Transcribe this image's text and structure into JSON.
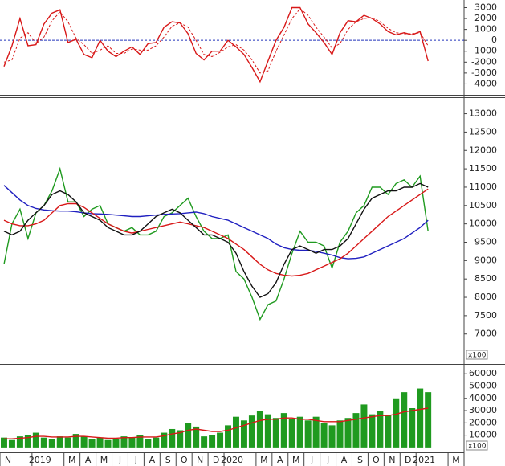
{
  "chart_data": [
    {
      "type": "line",
      "ylim": [
        -5000,
        3700
      ],
      "yticks": [
        3000,
        2000,
        1000,
        0,
        -1000,
        -2000,
        -3000,
        -4000
      ],
      "zero_line": true,
      "zero_line_color": "#2233bb",
      "series": [
        {
          "color": "#d81818",
          "values": [
            -2400,
            -500,
            2000,
            -500,
            -400,
            1500,
            2500,
            2800,
            -200,
            100,
            -1300,
            -1600,
            0,
            -1000,
            -1500,
            -1000,
            -600,
            -1300,
            -300,
            -200,
            1200,
            1700,
            1600,
            600,
            -1200,
            -1800,
            -1000,
            -1000,
            0,
            -600,
            -1300,
            -2500,
            -3800,
            -1900,
            0,
            1200,
            3000,
            3000,
            1500,
            700,
            -200,
            -1300,
            700,
            1800,
            1700,
            2300,
            2000,
            1500,
            800,
            500,
            700,
            500,
            800,
            -1900,
            null,
            null,
            null,
            null
          ]
        },
        {
          "color": "#d81818",
          "dash": true,
          "values": [
            -2000,
            -1800,
            200,
            700,
            -300,
            300,
            1800,
            2600,
            1700,
            200,
            -400,
            -1200,
            -900,
            -500,
            -1200,
            -1200,
            -800,
            -900,
            -900,
            -500,
            300,
            1300,
            1600,
            1200,
            0,
            -1300,
            -1500,
            -1100,
            -600,
            -400,
            -900,
            -1800,
            -3000,
            -2800,
            -1000,
            500,
            2000,
            2900,
            2300,
            1200,
            300,
            -700,
            -300,
            1000,
            1700,
            2000,
            2100,
            1700,
            1100,
            700,
            600,
            600,
            700,
            -500,
            null,
            null,
            null,
            null
          ]
        }
      ]
    },
    {
      "type": "line",
      "ylim": [
        6250,
        13450
      ],
      "yticks": [
        13000,
        12500,
        12000,
        11500,
        11000,
        10500,
        10000,
        9500,
        9000,
        8500,
        8000,
        7500,
        7000
      ],
      "unit_label": "x100",
      "series": [
        {
          "color": "#1f9a1f",
          "values": [
            8900,
            10000,
            10400,
            9600,
            10300,
            10500,
            10900,
            11500,
            10600,
            10600,
            10200,
            10400,
            10500,
            10000,
            9900,
            9800,
            9900,
            9700,
            9700,
            9800,
            10200,
            10300,
            10500,
            10700,
            10200,
            9800,
            9600,
            9600,
            9700,
            8700,
            8500,
            8000,
            7400,
            7800,
            7900,
            8500,
            9200,
            9800,
            9500,
            9500,
            9400,
            8800,
            9500,
            9800,
            10300,
            10500,
            11000,
            11000,
            10800,
            11100,
            11200,
            11000,
            11300,
            9800,
            null,
            null,
            null,
            null
          ]
        },
        {
          "color": "#2020c0",
          "values": [
            11050,
            10850,
            10650,
            10500,
            10420,
            10380,
            10360,
            10350,
            10350,
            10330,
            10300,
            10280,
            10270,
            10260,
            10240,
            10220,
            10200,
            10200,
            10220,
            10240,
            10260,
            10270,
            10280,
            10300,
            10320,
            10280,
            10200,
            10150,
            10100,
            10000,
            9900,
            9800,
            9700,
            9600,
            9450,
            9350,
            9300,
            9280,
            9280,
            9250,
            9200,
            9150,
            9080,
            9050,
            9060,
            9100,
            9200,
            9300,
            9400,
            9500,
            9600,
            9750,
            9900,
            10100,
            null,
            null,
            null,
            null
          ]
        },
        {
          "color": "#d81818",
          "values": [
            10100,
            10000,
            9950,
            9950,
            10000,
            10100,
            10300,
            10500,
            10550,
            10550,
            10450,
            10300,
            10150,
            10000,
            9900,
            9800,
            9750,
            9800,
            9850,
            9900,
            9950,
            10000,
            10050,
            10000,
            9950,
            9900,
            9800,
            9700,
            9600,
            9450,
            9300,
            9100,
            8900,
            8750,
            8650,
            8600,
            8580,
            8600,
            8650,
            8750,
            8850,
            8950,
            9050,
            9200,
            9400,
            9600,
            9800,
            10000,
            10200,
            10350,
            10500,
            10650,
            10800,
            10950,
            null,
            null,
            null,
            null
          ]
        },
        {
          "color": "#111111",
          "values": [
            9800,
            9700,
            9800,
            10100,
            10300,
            10500,
            10800,
            10900,
            10800,
            10600,
            10300,
            10200,
            10100,
            9900,
            9800,
            9700,
            9700,
            9800,
            10000,
            10200,
            10300,
            10400,
            10300,
            10100,
            9900,
            9700,
            9700,
            9600,
            9500,
            9200,
            8700,
            8300,
            8000,
            8100,
            8400,
            8900,
            9300,
            9400,
            9300,
            9200,
            9300,
            9300,
            9400,
            9600,
            10000,
            10400,
            10700,
            10800,
            10900,
            10900,
            11000,
            11000,
            11100,
            11000,
            null,
            null,
            null,
            null
          ]
        }
      ]
    },
    {
      "type": "bar",
      "ylim": [
        -4000,
        68000
      ],
      "yticks": [
        60000,
        50000,
        40000,
        30000,
        20000,
        10000
      ],
      "unit_label": "x100",
      "categories": [
        "N",
        null,
        null,
        null,
        "2019",
        null,
        null,
        null,
        "M",
        null,
        "A",
        null,
        "M",
        null,
        "J",
        null,
        "J",
        null,
        "A",
        null,
        "S",
        null,
        "O",
        null,
        "N",
        null,
        "D",
        null,
        "2020",
        null,
        null,
        null,
        "M",
        null,
        "A",
        null,
        "M",
        null,
        "J",
        null,
        "J",
        null,
        "A",
        null,
        "S",
        null,
        "O",
        null,
        "N",
        null,
        "D",
        null,
        "2021",
        null,
        null,
        null,
        "M",
        null
      ],
      "series": [
        {
          "color": "#1f9a1f",
          "values": [
            8000,
            6000,
            9000,
            10000,
            12000,
            8000,
            7000,
            9000,
            8000,
            11000,
            9000,
            7000,
            8000,
            6000,
            7000,
            9000,
            8000,
            10000,
            7000,
            8000,
            12000,
            15000,
            14000,
            20000,
            17000,
            9000,
            10000,
            12000,
            18000,
            25000,
            22000,
            26000,
            30000,
            27000,
            24000,
            28000,
            23000,
            25000,
            22000,
            25000,
            20000,
            18000,
            22000,
            24000,
            28000,
            35000,
            27000,
            30000,
            26000,
            40000,
            45000,
            32000,
            48000,
            45000,
            null,
            null,
            null,
            null
          ]
        },
        {
          "color": "#d81818",
          "mark": "line",
          "values": [
            7000,
            7000,
            7500,
            8000,
            9000,
            9000,
            8500,
            8500,
            8500,
            9000,
            9000,
            8500,
            8000,
            7500,
            7500,
            8000,
            8000,
            8500,
            8500,
            8500,
            9500,
            11000,
            12000,
            14000,
            15000,
            14000,
            13000,
            13000,
            14000,
            16000,
            18000,
            20000,
            22000,
            23000,
            23000,
            24000,
            24000,
            23000,
            23000,
            22000,
            21000,
            21000,
            21000,
            22000,
            23000,
            24000,
            25000,
            26000,
            26000,
            27000,
            29000,
            30000,
            31000,
            32000,
            null,
            null,
            null,
            null
          ]
        }
      ]
    }
  ]
}
